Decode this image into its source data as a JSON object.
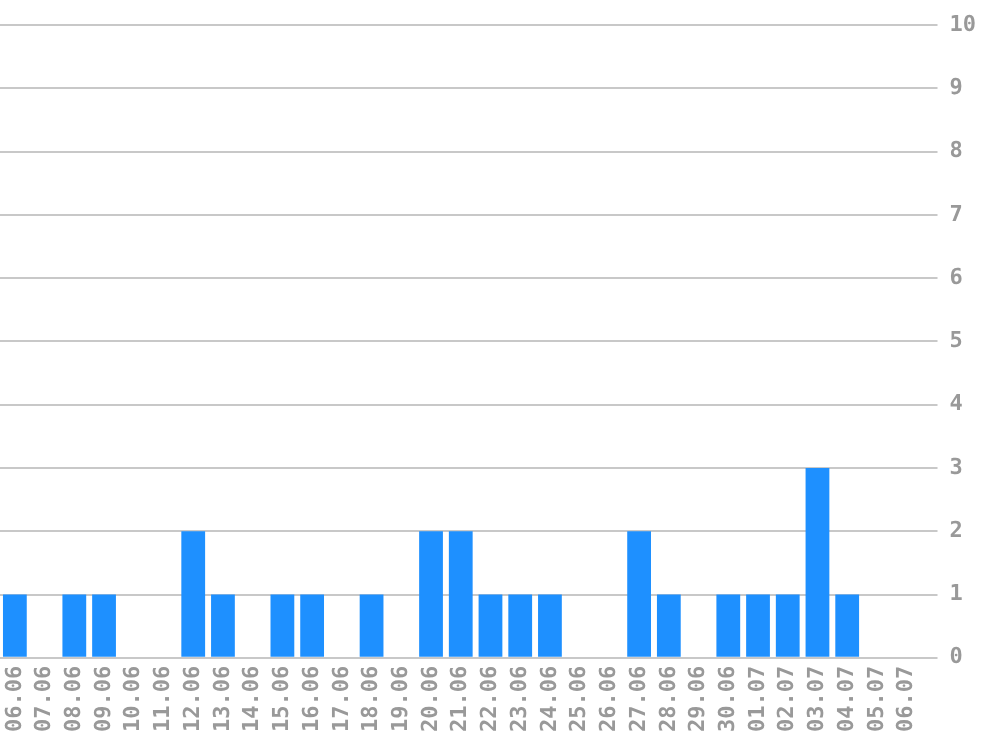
{
  "chart_data": {
    "type": "bar",
    "categories": [
      "06.06",
      "07.06",
      "08.06",
      "09.06",
      "10.06",
      "11.06",
      "12.06",
      "13.06",
      "14.06",
      "15.06",
      "16.06",
      "17.06",
      "18.06",
      "19.06",
      "20.06",
      "21.06",
      "22.06",
      "23.06",
      "24.06",
      "25.06",
      "26.06",
      "27.06",
      "28.06",
      "29.06",
      "30.06",
      "01.07",
      "02.07",
      "03.07",
      "04.07",
      "05.07",
      "06.07"
    ],
    "values": [
      1,
      0,
      1,
      1,
      0,
      0,
      2,
      1,
      0,
      1,
      1,
      0,
      1,
      0,
      2,
      2,
      1,
      1,
      1,
      0,
      0,
      2,
      1,
      0,
      1,
      1,
      1,
      3,
      1,
      0,
      0
    ],
    "color": "#1e90ff",
    "ylim": [
      0,
      10
    ],
    "yticks": [
      0,
      1,
      2,
      3,
      4,
      5,
      6,
      7,
      8,
      9,
      10
    ],
    "grid": "y",
    "legend": false
  }
}
